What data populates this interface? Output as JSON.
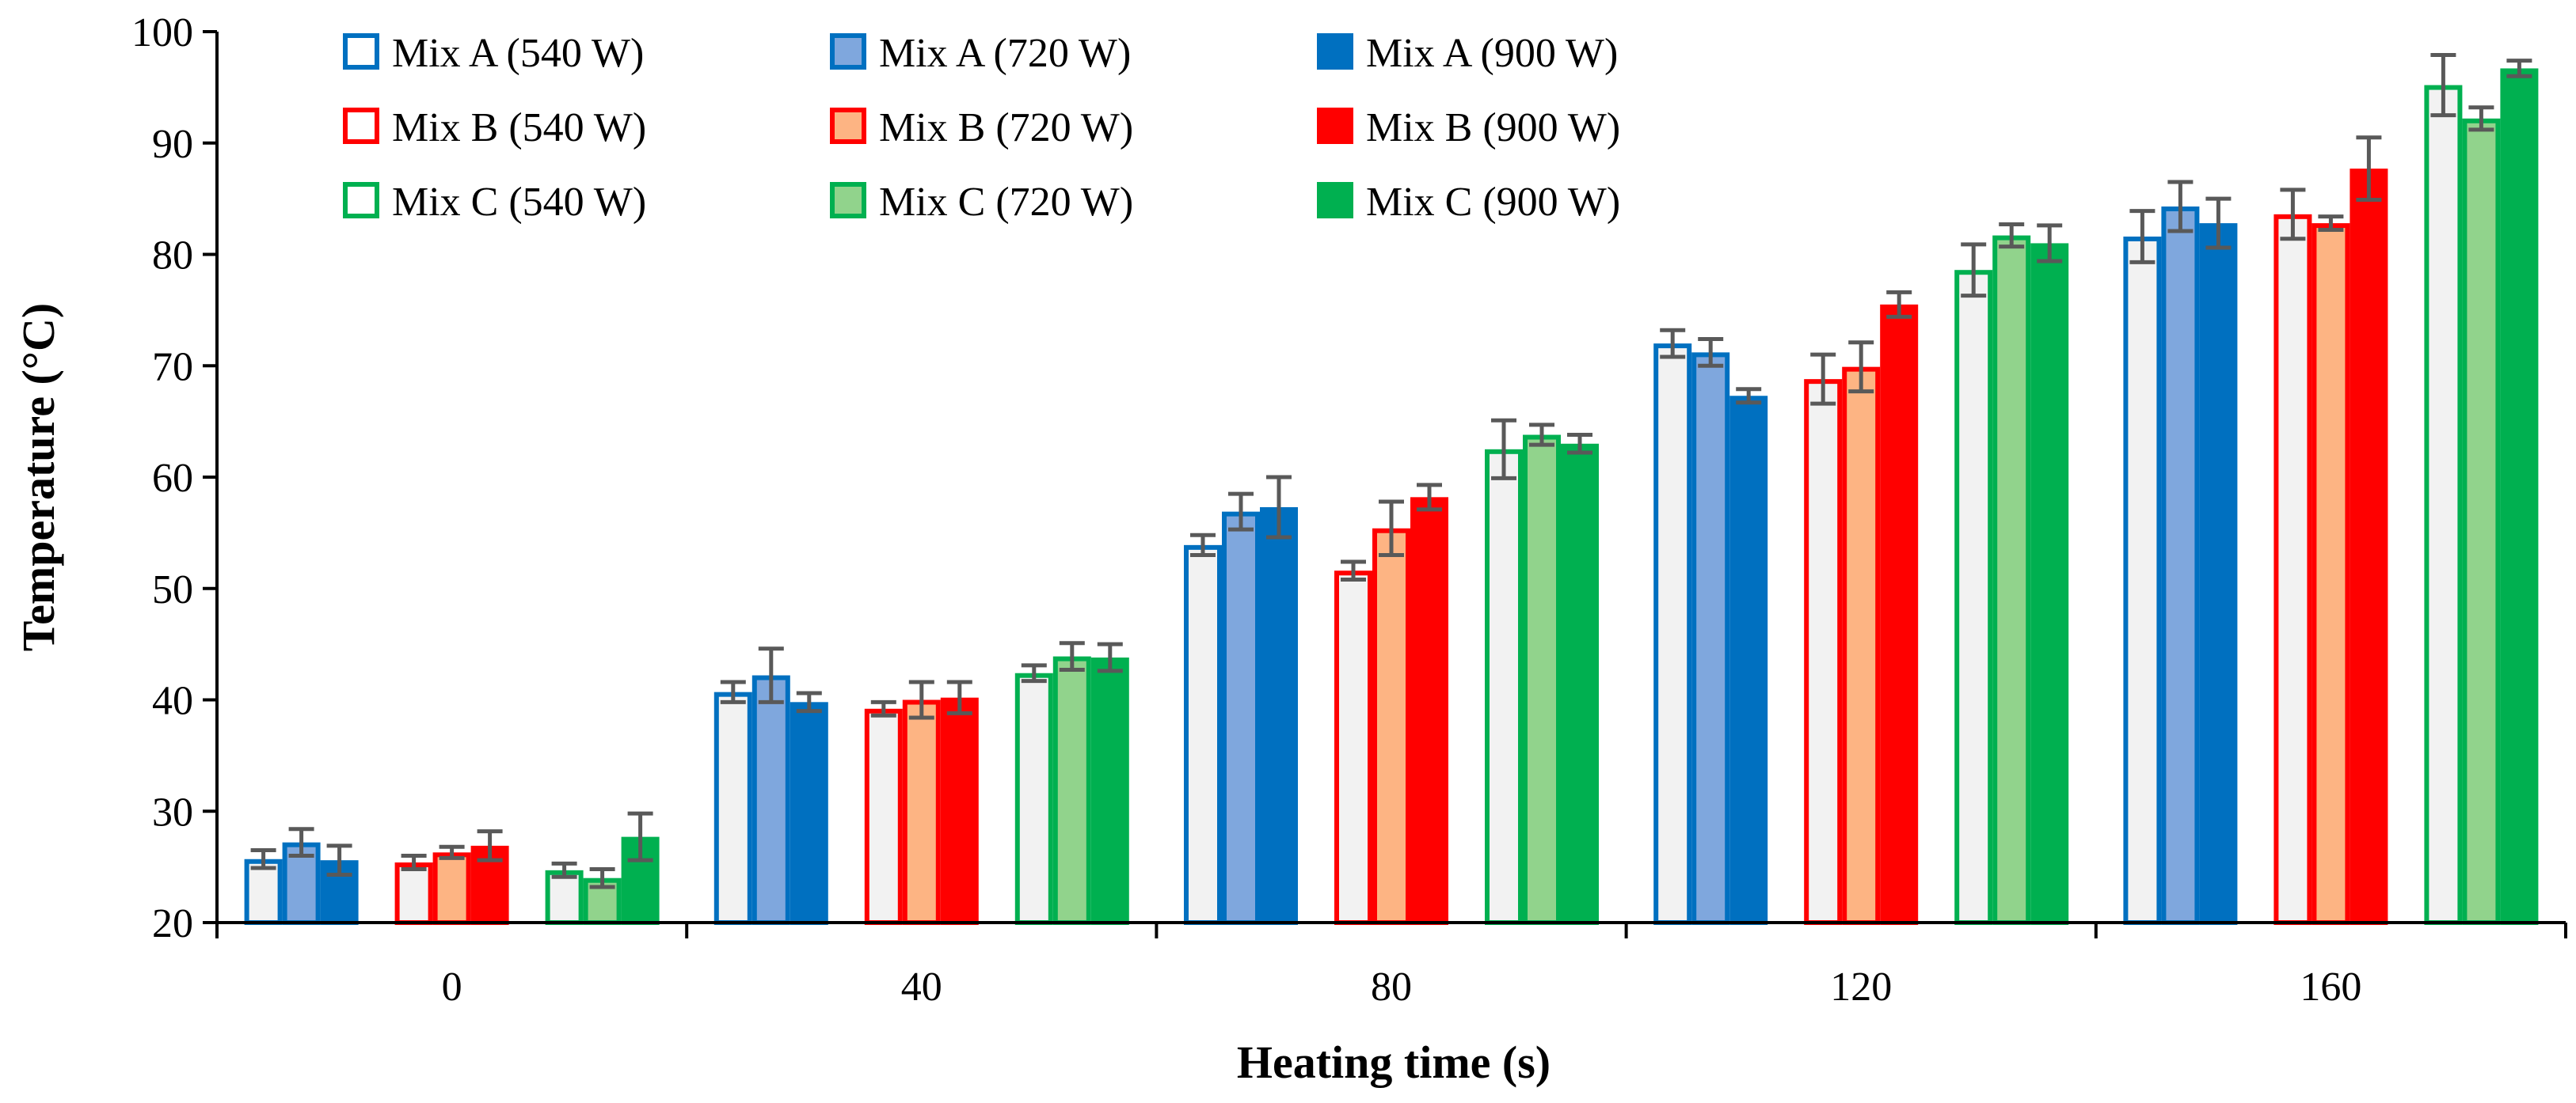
{
  "chart_data": {
    "type": "bar",
    "title": "",
    "xlabel": "Heating time (s)",
    "ylabel": "Temperature (°C)",
    "ylim": [
      20,
      100
    ],
    "yticks": [
      "20",
      "30",
      "40",
      "50",
      "60",
      "70",
      "80",
      "90",
      "100"
    ],
    "categories": [
      "0",
      "40",
      "80",
      "120",
      "160"
    ],
    "legend_position": "top-left",
    "groups": [
      {
        "name": "Mix A",
        "color": "#0070C0",
        "series": [
          {
            "name": "Mix A (540 W)",
            "style": "outline",
            "values": [
              25.7,
              40.7,
              53.9,
              72.0,
              81.6
            ],
            "errors": [
              0.8,
              0.9,
              0.9,
              1.2,
              2.3
            ]
          },
          {
            "name": "Mix A (720 W)",
            "style": "light",
            "values": [
              27.2,
              42.2,
              56.9,
              71.2,
              84.3
            ],
            "errors": [
              1.2,
              2.4,
              1.6,
              1.2,
              2.2
            ]
          },
          {
            "name": "Mix A (900 W)",
            "style": "solid",
            "values": [
              25.6,
              39.8,
              57.3,
              67.3,
              82.8
            ],
            "errors": [
              1.3,
              0.8,
              2.7,
              0.6,
              2.2
            ]
          }
        ]
      },
      {
        "name": "Mix B",
        "color": "#FF0000",
        "series": [
          {
            "name": "Mix B (540 W)",
            "style": "outline",
            "values": [
              25.4,
              39.2,
              51.6,
              68.8,
              83.6
            ],
            "errors": [
              0.6,
              0.6,
              0.8,
              2.2,
              2.2
            ]
          },
          {
            "name": "Mix B (720 W)",
            "style": "light",
            "values": [
              26.3,
              40.0,
              55.4,
              69.9,
              82.8
            ],
            "errors": [
              0.5,
              1.6,
              2.4,
              2.2,
              0.6
            ]
          },
          {
            "name": "Mix B (900 W)",
            "style": "solid",
            "values": [
              26.9,
              40.2,
              58.2,
              75.5,
              87.7
            ],
            "errors": [
              1.3,
              1.4,
              1.1,
              1.1,
              2.8
            ]
          }
        ]
      },
      {
        "name": "Mix C",
        "color": "#00B050",
        "series": [
          {
            "name": "Mix C (540 W)",
            "style": "outline",
            "values": [
              24.7,
              42.4,
              62.5,
              78.6,
              95.2
            ],
            "errors": [
              0.6,
              0.7,
              2.6,
              2.3,
              2.7
            ]
          },
          {
            "name": "Mix C (720 W)",
            "style": "light",
            "values": [
              24.0,
              43.9,
              63.8,
              81.7,
              92.2
            ],
            "errors": [
              0.8,
              1.2,
              0.9,
              1.0,
              1.0
            ]
          },
          {
            "name": "Mix C (900 W)",
            "style": "solid",
            "values": [
              27.7,
              43.8,
              63.0,
              81.0,
              96.7
            ],
            "errors": [
              2.1,
              1.2,
              0.8,
              1.6,
              0.7
            ]
          }
        ]
      }
    ]
  }
}
